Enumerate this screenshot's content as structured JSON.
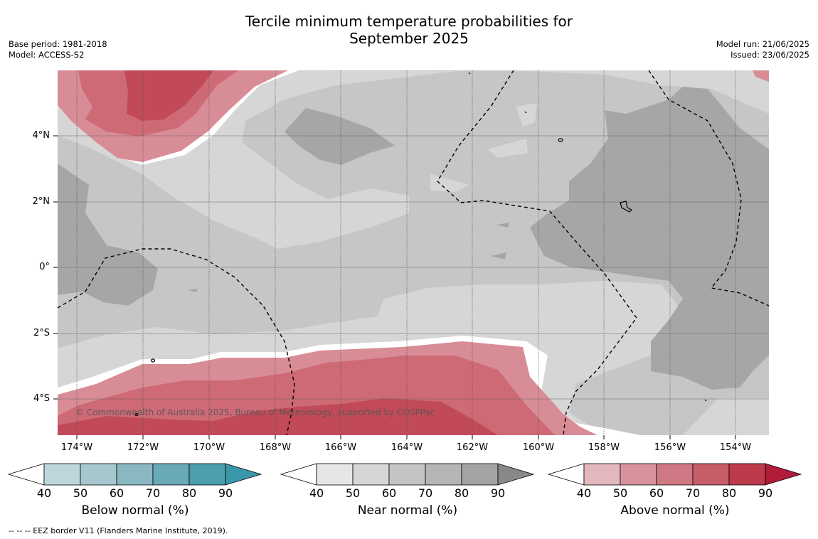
{
  "header": {
    "title_line1": "Tercile minimum temperature probabilities for",
    "title_line2": "September 2025",
    "base_period": "Base period: 1981-2018",
    "model": "Model: ACCESS-S2",
    "model_run": "Model run: 21/06/2025",
    "issued": "Issued: 23/06/2025"
  },
  "map": {
    "copyright": "© Commonwealth of Australia 2025, Bureau of Meteorology, supported by COSPPac",
    "lat_labels": [
      "4°N",
      "2°N",
      "0°",
      "2°S",
      "4°S"
    ],
    "lon_labels": [
      "174°W",
      "172°W",
      "170°W",
      "168°W",
      "166°W",
      "164°W",
      "162°W",
      "160°W",
      "158°W",
      "156°W",
      "154°W"
    ],
    "colors": {
      "near_40": "#d6d6d6",
      "near_50": "#c6c6c6",
      "near_60": "#a6a6a6",
      "above_40": "#d88c96",
      "above_50": "#cd6a76",
      "above_60": "#c24a58"
    }
  },
  "colorbars": [
    {
      "label": "Below normal (%)",
      "ticks": [
        "40",
        "50",
        "60",
        "70",
        "80",
        "90"
      ],
      "colors": [
        "#ffffff",
        "#bdd6dc",
        "#a6c7ce",
        "#89b7c2",
        "#6aaab7",
        "#4b9eae",
        "#3a97aa"
      ]
    },
    {
      "label": "Near normal (%)",
      "ticks": [
        "40",
        "50",
        "60",
        "70",
        "80",
        "90"
      ],
      "colors": [
        "#ffffff",
        "#e6e6e6",
        "#d6d6d6",
        "#c4c4c4",
        "#b5b5b5",
        "#a3a3a3",
        "#888888"
      ]
    },
    {
      "label": "Above normal (%)",
      "ticks": [
        "40",
        "50",
        "60",
        "70",
        "80",
        "90"
      ],
      "colors": [
        "#ffffff",
        "#e2b8bd",
        "#d8929b",
        "#cf7883",
        "#c75d69",
        "#bd3a4c",
        "#b01c3a"
      ]
    }
  ],
  "footnote": "--  --  -- EEZ border V11 (Flanders Marine Institute, 2019)."
}
